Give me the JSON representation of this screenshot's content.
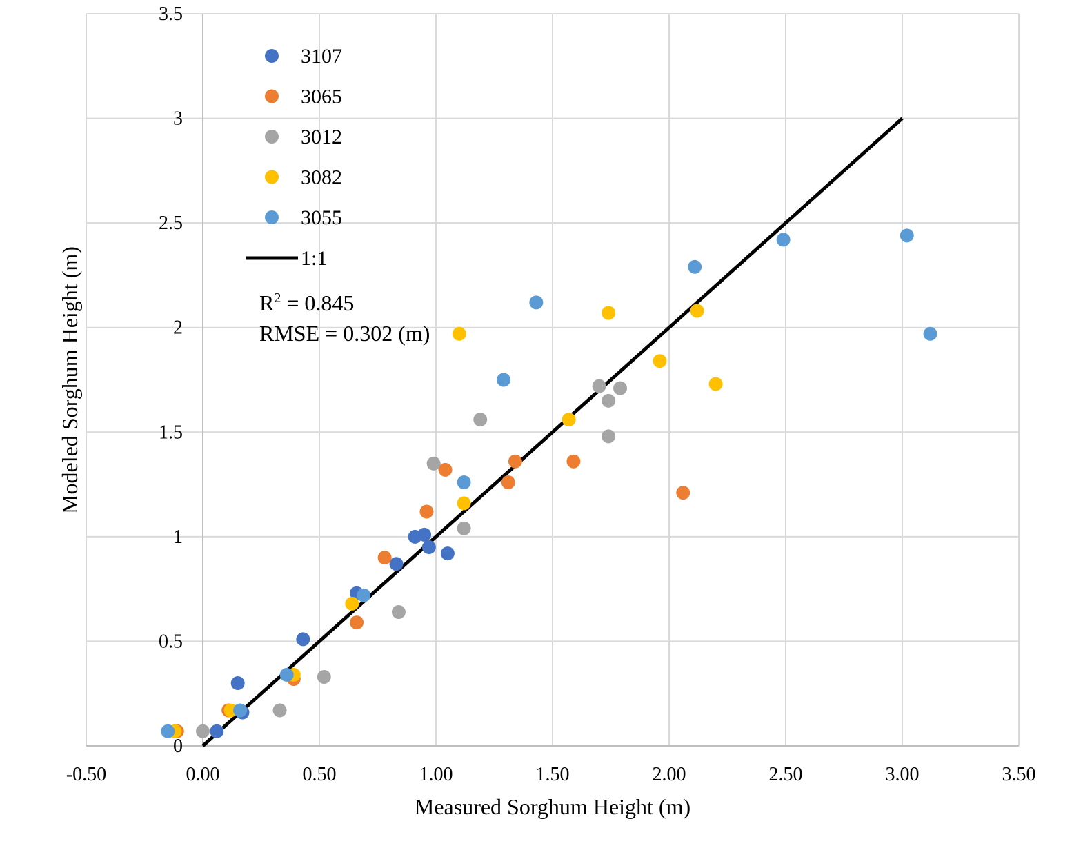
{
  "chart_data": {
    "type": "scatter",
    "xlabel": "Measured Sorghum Height (m)",
    "ylabel": "Modeled Sorghum Height (m)",
    "xlim": [
      -0.5,
      3.5
    ],
    "ylim": [
      0,
      3.5
    ],
    "x_ticks": [
      "-0.50",
      "0.00",
      "0.50",
      "1.00",
      "1.50",
      "2.00",
      "2.50",
      "3.00",
      "3.50"
    ],
    "y_ticks": [
      "0",
      "0.5",
      "1",
      "1.5",
      "2",
      "2.5",
      "3",
      "3.5"
    ],
    "grid": true,
    "legend_placement": "top-left",
    "series": [
      {
        "name": "3107",
        "color": "#4472C4",
        "points": [
          [
            0.06,
            0.07
          ],
          [
            0.15,
            0.3
          ],
          [
            0.17,
            0.16
          ],
          [
            0.43,
            0.51
          ],
          [
            0.66,
            0.73
          ],
          [
            0.83,
            0.87
          ],
          [
            0.91,
            1.0
          ],
          [
            0.95,
            1.01
          ],
          [
            0.97,
            0.95
          ],
          [
            1.05,
            0.92
          ]
        ]
      },
      {
        "name": "3065",
        "color": "#ED7D31",
        "points": [
          [
            -0.11,
            0.07
          ],
          [
            0.11,
            0.17
          ],
          [
            0.39,
            0.32
          ],
          [
            0.66,
            0.59
          ],
          [
            0.78,
            0.9
          ],
          [
            0.96,
            1.12
          ],
          [
            1.04,
            1.32
          ],
          [
            1.31,
            1.26
          ],
          [
            1.34,
            1.36
          ],
          [
            1.59,
            1.36
          ],
          [
            2.06,
            1.21
          ]
        ]
      },
      {
        "name": "3012",
        "color": "#A5A5A5",
        "points": [
          [
            0.0,
            0.07
          ],
          [
            0.33,
            0.17
          ],
          [
            0.52,
            0.33
          ],
          [
            0.84,
            0.64
          ],
          [
            0.99,
            1.35
          ],
          [
            1.12,
            1.04
          ],
          [
            1.19,
            1.56
          ],
          [
            1.7,
            1.72
          ],
          [
            1.74,
            1.65
          ],
          [
            1.79,
            1.71
          ],
          [
            1.74,
            1.48
          ]
        ]
      },
      {
        "name": "3082",
        "color": "#FFC000",
        "points": [
          [
            -0.12,
            0.07
          ],
          [
            0.12,
            0.17
          ],
          [
            0.39,
            0.34
          ],
          [
            0.64,
            0.68
          ],
          [
            1.1,
            1.97
          ],
          [
            1.12,
            1.16
          ],
          [
            1.57,
            1.56
          ],
          [
            1.74,
            2.07
          ],
          [
            1.96,
            1.84
          ],
          [
            2.12,
            2.08
          ],
          [
            2.2,
            1.73
          ]
        ]
      },
      {
        "name": "3055",
        "color": "#5B9BD5",
        "points": [
          [
            -0.15,
            0.07
          ],
          [
            0.16,
            0.17
          ],
          [
            0.36,
            0.34
          ],
          [
            0.69,
            0.72
          ],
          [
            1.12,
            1.26
          ],
          [
            1.29,
            1.75
          ],
          [
            1.43,
            2.12
          ],
          [
            2.11,
            2.29
          ],
          [
            2.49,
            2.42
          ],
          [
            3.02,
            2.44
          ],
          [
            3.12,
            1.97
          ]
        ]
      }
    ],
    "reference_line": {
      "name": "1:1",
      "color": "#000000",
      "from": [
        0,
        0
      ],
      "to": [
        3,
        3
      ]
    },
    "annotations": {
      "r2_prefix": "R",
      "r2_sup": "2",
      "r2_value": " = 0.845",
      "rmse": "RMSE = 0.302 (m)"
    }
  }
}
